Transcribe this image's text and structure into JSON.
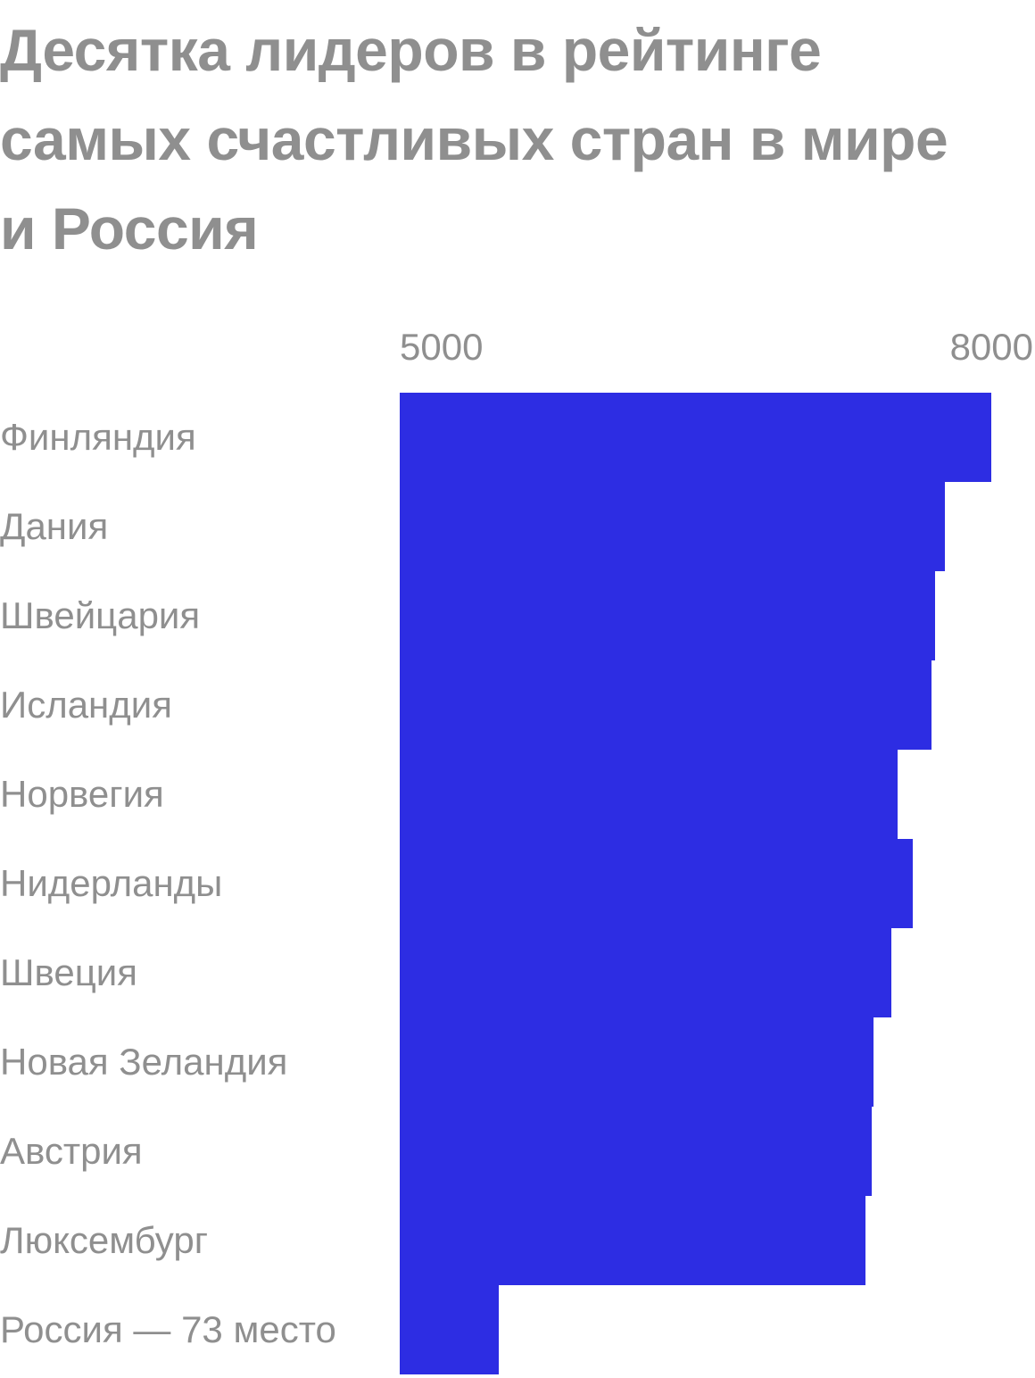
{
  "chart_data": {
    "type": "bar",
    "orientation": "horizontal",
    "title": "Десятка лидеров в рейтинге самых счастливых стран в мире и Россия",
    "title_lines": [
      "Десятка лидеров в рейтинге",
      "самых счастливых стран в мире",
      "и Россия"
    ],
    "xlim": [
      5000,
      8000
    ],
    "ticks": [
      {
        "value": 5000,
        "label": "5000"
      },
      {
        "value": 8000,
        "label": "8000"
      }
    ],
    "categories": [
      "Финляндия",
      "Дания",
      "Швейцария",
      "Исландия",
      "Норвегия",
      "Нидерланды",
      "Швеция",
      "Новая Зеландия",
      "Австрия",
      "Люксембург",
      "Россия — 73 место"
    ],
    "values": [
      7842,
      7620,
      7571,
      7554,
      7392,
      7464,
      7363,
      7277,
      7268,
      7238,
      5477
    ],
    "bar_color": "#2d2de3",
    "text_color": "#8f8f8f",
    "grid": false,
    "legend": "none"
  }
}
